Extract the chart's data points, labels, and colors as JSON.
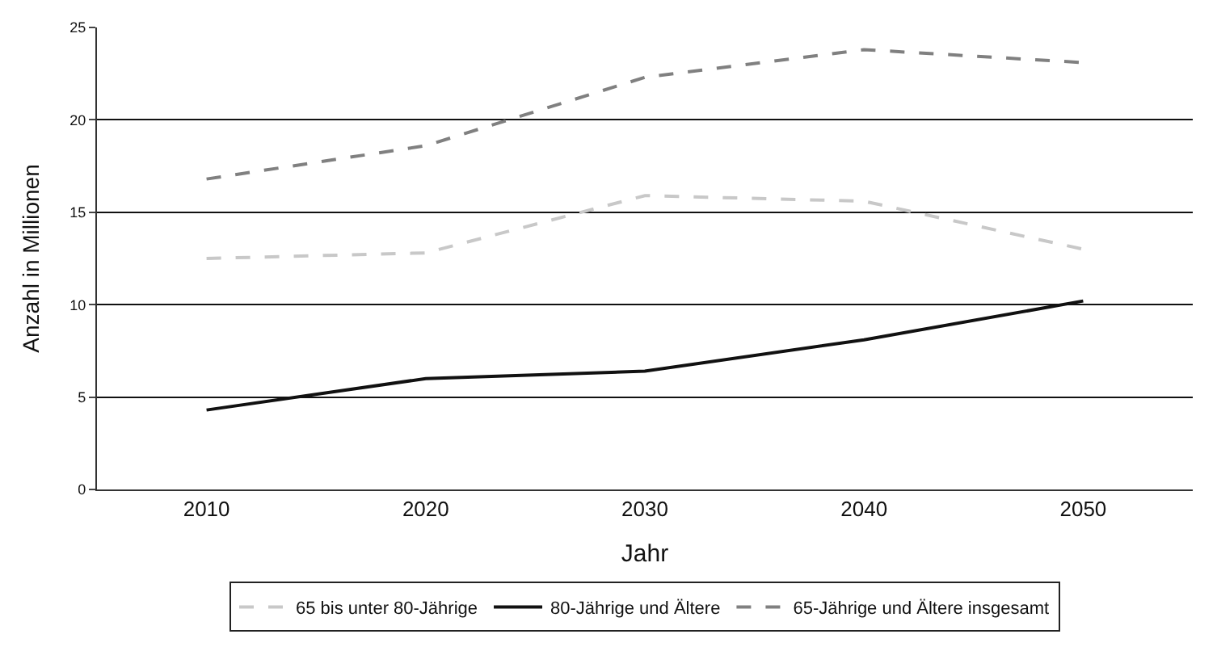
{
  "chart_data": {
    "type": "line",
    "xlabel": "Jahr",
    "ylabel": "Anzahl in Millionen",
    "categories": [
      "2010",
      "2020",
      "2030",
      "2040",
      "2050"
    ],
    "series": [
      {
        "name": "65 bis unter 80-Jährige",
        "color": "#c8c8c8",
        "values": [
          12.5,
          12.8,
          15.9,
          15.6,
          13.0
        ],
        "line_style": "dashed"
      },
      {
        "name": "80-Jährige und Ältere",
        "color": "#111111",
        "values": [
          4.3,
          6.0,
          6.4,
          8.1,
          10.2
        ],
        "line_style": "solid"
      },
      {
        "name": "65-Jährige und Ältere insgesamt",
        "color": "#808080",
        "values": [
          16.8,
          18.6,
          22.3,
          23.8,
          23.1
        ],
        "line_style": "dashed"
      }
    ],
    "ylim": [
      0,
      25
    ],
    "yticks": [
      0,
      5,
      10,
      15,
      20,
      25
    ],
    "grid": "y",
    "legend": "bottom",
    "marker": "none"
  }
}
